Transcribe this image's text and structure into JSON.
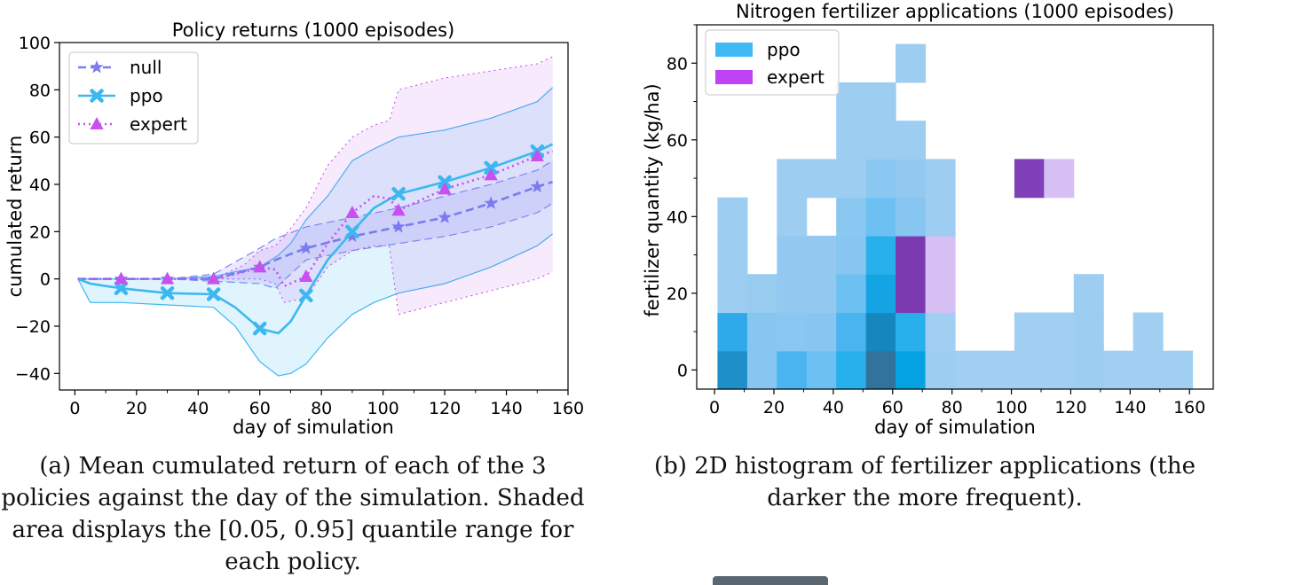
{
  "chart_data": [
    {
      "type": "line",
      "title": "Policy returns (1000 episodes)",
      "xlabel": "day of simulation",
      "ylabel": "cumulated return",
      "xlim": [
        -5,
        160
      ],
      "ylim": [
        -47,
        100
      ],
      "xticks": [
        0,
        20,
        40,
        60,
        80,
        100,
        120,
        140,
        160
      ],
      "yticks": [
        -40,
        -20,
        0,
        20,
        40,
        60,
        80,
        100
      ],
      "grid": false,
      "legend": "top-left",
      "series": [
        {
          "name": "null",
          "color": "#7b7bf0",
          "marker": "star",
          "style": "dashed",
          "x": [
            1,
            15,
            30,
            45,
            60,
            65,
            75,
            90,
            105,
            120,
            135,
            150,
            155
          ],
          "y": [
            0,
            0,
            0,
            0,
            5,
            8,
            13,
            18,
            22,
            26,
            32,
            39,
            41
          ],
          "markers_x": [
            15,
            30,
            45,
            60,
            75,
            90,
            105,
            120,
            135,
            150
          ],
          "band_low": [
            0,
            0,
            0,
            -1,
            -2,
            -4,
            8,
            12,
            15,
            18,
            22,
            28,
            32
          ],
          "band_high": [
            0,
            0,
            0,
            2,
            13,
            17,
            22,
            26,
            30,
            35,
            40,
            46,
            50
          ]
        },
        {
          "name": "ppo",
          "color": "#3cb8f0",
          "marker": "x",
          "style": "solid",
          "x": [
            1,
            5,
            15,
            30,
            45,
            52,
            60,
            66,
            70,
            75,
            82,
            90,
            97,
            105,
            120,
            135,
            150,
            155
          ],
          "y": [
            0,
            -2,
            -4,
            -6,
            -6.5,
            -12,
            -21,
            -23,
            -18,
            -7,
            8,
            20,
            30,
            36,
            41,
            47,
            54,
            57
          ],
          "markers_x": [
            15,
            30,
            45,
            60,
            75,
            90,
            105,
            120,
            135,
            150
          ],
          "band_low": [
            0,
            -10,
            -10,
            -11,
            -12,
            -20,
            -35,
            -41,
            -40,
            -36,
            -25,
            -15,
            -10,
            -6,
            -2,
            5,
            14,
            19
          ],
          "band_high": [
            0,
            0,
            0,
            0,
            1,
            3,
            5,
            10,
            15,
            25,
            35,
            50,
            55,
            60,
            63,
            68,
            75,
            81
          ]
        },
        {
          "name": "expert",
          "color": "#c850f0",
          "marker": "triangle",
          "style": "dotted",
          "x": [
            1,
            15,
            30,
            45,
            55,
            60,
            65,
            68,
            75,
            82,
            90,
            97,
            102,
            105,
            120,
            135,
            150,
            155
          ],
          "y": [
            0,
            0,
            0,
            0,
            3,
            5,
            4,
            -3,
            1,
            15,
            28,
            35,
            34,
            29,
            38,
            44,
            52,
            54
          ],
          "markers_x": [
            15,
            30,
            45,
            60,
            75,
            90,
            105,
            120,
            135,
            150
          ],
          "band_low": [
            0,
            0,
            0,
            0,
            0,
            0,
            -2,
            -10,
            -8,
            5,
            12,
            14,
            14,
            -15,
            -10,
            -5,
            0,
            3
          ],
          "band_high": [
            0,
            0,
            0,
            0,
            6,
            12,
            14,
            18,
            30,
            48,
            60,
            65,
            67,
            80,
            85,
            88,
            91,
            94
          ]
        }
      ]
    },
    {
      "type": "heatmap",
      "title": "Nitrogen fertilizer applications (1000 episodes)",
      "xlabel": "day of simulation",
      "ylabel": "fertilizer quantity (kg/ha)",
      "xlim": [
        -6,
        168
      ],
      "ylim": [
        -5,
        90
      ],
      "xticks": [
        0,
        20,
        40,
        60,
        80,
        100,
        120,
        140,
        160
      ],
      "yticks": [
        0,
        20,
        40,
        60,
        80
      ],
      "legend": "top-left",
      "bin_width_x": 10,
      "bin_width_y": 10,
      "series": [
        {
          "name": "ppo",
          "legend_color": "#3fbaf4",
          "cells": [
            {
              "x": 1,
              "y": -5,
              "c": "#1e8fc8"
            },
            {
              "x": 11,
              "y": -5,
              "c": "#86c6f1"
            },
            {
              "x": 21,
              "y": -5,
              "c": "#4ab4f0"
            },
            {
              "x": 31,
              "y": -5,
              "c": "#6cc0f2"
            },
            {
              "x": 41,
              "y": -5,
              "c": "#28b0ec"
            },
            {
              "x": 51,
              "y": -5,
              "c": "#31739c"
            },
            {
              "x": 61,
              "y": -5,
              "c": "#05a2e2"
            },
            {
              "x": 71,
              "y": -5,
              "c": "#9dcdf0"
            },
            {
              "x": 81,
              "y": -5,
              "c": "#a0cff1"
            },
            {
              "x": 91,
              "y": -5,
              "c": "#a0cff1"
            },
            {
              "x": 101,
              "y": -5,
              "c": "#a0cff1"
            },
            {
              "x": 111,
              "y": -5,
              "c": "#a0cff1"
            },
            {
              "x": 121,
              "y": -5,
              "c": "#9dcdf0"
            },
            {
              "x": 131,
              "y": -5,
              "c": "#a0cff1"
            },
            {
              "x": 141,
              "y": -5,
              "c": "#a0cff1"
            },
            {
              "x": 151,
              "y": -5,
              "c": "#a0cff1"
            },
            {
              "x": 1,
              "y": 5,
              "c": "#2eaaea"
            },
            {
              "x": 11,
              "y": 5,
              "c": "#86c6f1"
            },
            {
              "x": 21,
              "y": 5,
              "c": "#8ac8f1"
            },
            {
              "x": 31,
              "y": 5,
              "c": "#86c6f1"
            },
            {
              "x": 41,
              "y": 5,
              "c": "#4ab4f0"
            },
            {
              "x": 51,
              "y": 5,
              "c": "#1686be"
            },
            {
              "x": 61,
              "y": 5,
              "c": "#28b0ec"
            },
            {
              "x": 71,
              "y": 5,
              "c": "#a0cff1"
            },
            {
              "x": 101,
              "y": 5,
              "c": "#a0cff1"
            },
            {
              "x": 111,
              "y": 5,
              "c": "#a0cff1"
            },
            {
              "x": 121,
              "y": 5,
              "c": "#9dcdf0"
            },
            {
              "x": 141,
              "y": 5,
              "c": "#a0cff1"
            },
            {
              "x": 1,
              "y": 15,
              "c": "#9dcdf0"
            },
            {
              "x": 11,
              "y": 15,
              "c": "#97cbf0"
            },
            {
              "x": 21,
              "y": 15,
              "c": "#93c9f0"
            },
            {
              "x": 31,
              "y": 15,
              "c": "#93c9f0"
            },
            {
              "x": 41,
              "y": 15,
              "c": "#6cc0f2"
            },
            {
              "x": 51,
              "y": 15,
              "c": "#14a4e4"
            },
            {
              "x": 61,
              "y": 15,
              "c": "#7c3ab0"
            },
            {
              "x": 71,
              "y": 15,
              "c": "#d6bff2"
            },
            {
              "x": 121,
              "y": 15,
              "c": "#9dcdf0"
            },
            {
              "x": 1,
              "y": 25,
              "c": "#9dcdf0"
            },
            {
              "x": 21,
              "y": 25,
              "c": "#93c9f0"
            },
            {
              "x": 31,
              "y": 25,
              "c": "#93c9f0"
            },
            {
              "x": 41,
              "y": 25,
              "c": "#86c6f1"
            },
            {
              "x": 51,
              "y": 25,
              "c": "#28b0ec"
            },
            {
              "x": 61,
              "y": 25,
              "c": "#7c3ab0"
            },
            {
              "x": 71,
              "y": 25,
              "c": "#d6bff2"
            },
            {
              "x": 1,
              "y": 35,
              "c": "#9dcdf0"
            },
            {
              "x": 21,
              "y": 35,
              "c": "#9dcdf0"
            },
            {
              "x": 41,
              "y": 35,
              "c": "#8ac8f1"
            },
            {
              "x": 51,
              "y": 35,
              "c": "#6cc0f2"
            },
            {
              "x": 61,
              "y": 35,
              "c": "#86c6f1"
            },
            {
              "x": 71,
              "y": 35,
              "c": "#9dcdf0"
            },
            {
              "x": 21,
              "y": 45,
              "c": "#9dcdf0"
            },
            {
              "x": 31,
              "y": 45,
              "c": "#9dcdf0"
            },
            {
              "x": 41,
              "y": 45,
              "c": "#9dcdf0"
            },
            {
              "x": 51,
              "y": 45,
              "c": "#8ac8f1"
            },
            {
              "x": 61,
              "y": 45,
              "c": "#93c9f0"
            },
            {
              "x": 71,
              "y": 45,
              "c": "#9dcdf0"
            },
            {
              "x": 41,
              "y": 55,
              "c": "#9dcdf0"
            },
            {
              "x": 51,
              "y": 55,
              "c": "#9dcdf0"
            },
            {
              "x": 61,
              "y": 55,
              "c": "#9dcdf0"
            },
            {
              "x": 41,
              "y": 65,
              "c": "#9dcdf0"
            },
            {
              "x": 51,
              "y": 65,
              "c": "#9dcdf0"
            },
            {
              "x": 61,
              "y": 75,
              "c": "#9dcdf0"
            }
          ]
        },
        {
          "name": "expert",
          "legend_color": "#bf42f5",
          "cells": [
            {
              "x": 101,
              "y": 45,
              "c": "#8040b8"
            },
            {
              "x": 111,
              "y": 45,
              "c": "#d6bff2"
            }
          ]
        }
      ]
    }
  ],
  "captions": {
    "a": [
      "(a) Mean cumulated return of each of the 3",
      "policies against the day of the simulation. Shaded",
      "area displays the [0.05, 0.95] quantile range for",
      "each policy."
    ],
    "b": [
      "(b) 2D histogram of fertilizer applications (the",
      "darker the more frequent)."
    ]
  }
}
